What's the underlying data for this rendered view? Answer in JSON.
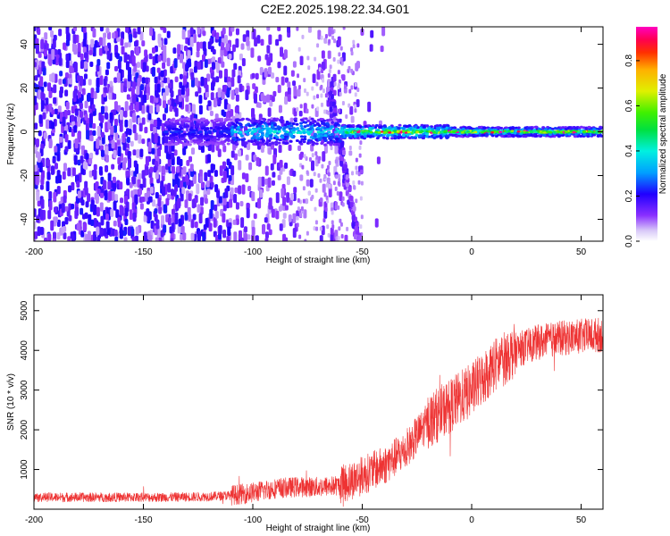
{
  "figure": {
    "title": "C2E2.2025.198.22.34.G01"
  },
  "chart_data": [
    {
      "type": "heatmap",
      "xlabel": "Height of straight line (km)",
      "ylabel": "Frequency (Hz)",
      "xlim": [
        -200,
        60
      ],
      "ylim": [
        -50,
        48
      ],
      "xticks": [
        -200,
        -150,
        -100,
        -50,
        0,
        50
      ],
      "yticks": [
        -40,
        -20,
        0,
        20,
        40
      ],
      "colorbar": {
        "label": "Normalized spectral amplitude",
        "range": [
          0.0,
          0.95
        ],
        "ticks": [
          0.0,
          0.2,
          0.4,
          0.6,
          0.8
        ],
        "colormap": "rainbow-white-to-magenta"
      },
      "features": {
        "carrier_line_frequency_hz": 0,
        "scattered_noise_x_range_km": [
          -200,
          -50
        ],
        "doppler_tail": {
          "x_start_km": -65,
          "y_start_hz": 20,
          "x_end_km": -52,
          "y_end_hz": -50
        }
      }
    },
    {
      "type": "line",
      "xlabel": "Height of straight line (km)",
      "ylabel": "SNR (10 * v/v)",
      "xlim": [
        -200,
        60
      ],
      "ylim": [
        0,
        5400
      ],
      "xticks": [
        -200,
        -150,
        -100,
        -50,
        0,
        50
      ],
      "yticks": [
        1000,
        2000,
        3000,
        4000,
        5000
      ],
      "series": [
        {
          "color": "#ee3333",
          "x": [
            -200,
            -180,
            -160,
            -140,
            -120,
            -110,
            -100,
            -90,
            -80,
            -70,
            -60,
            -50,
            -40,
            -30,
            -20,
            -10,
            0,
            10,
            20,
            30,
            40,
            50,
            60
          ],
          "y": [
            300,
            300,
            300,
            300,
            320,
            350,
            420,
            520,
            560,
            560,
            600,
            850,
            1100,
            1500,
            2200,
            2600,
            3000,
            3600,
            4000,
            4200,
            4300,
            4350,
            4400
          ]
        }
      ]
    }
  ]
}
